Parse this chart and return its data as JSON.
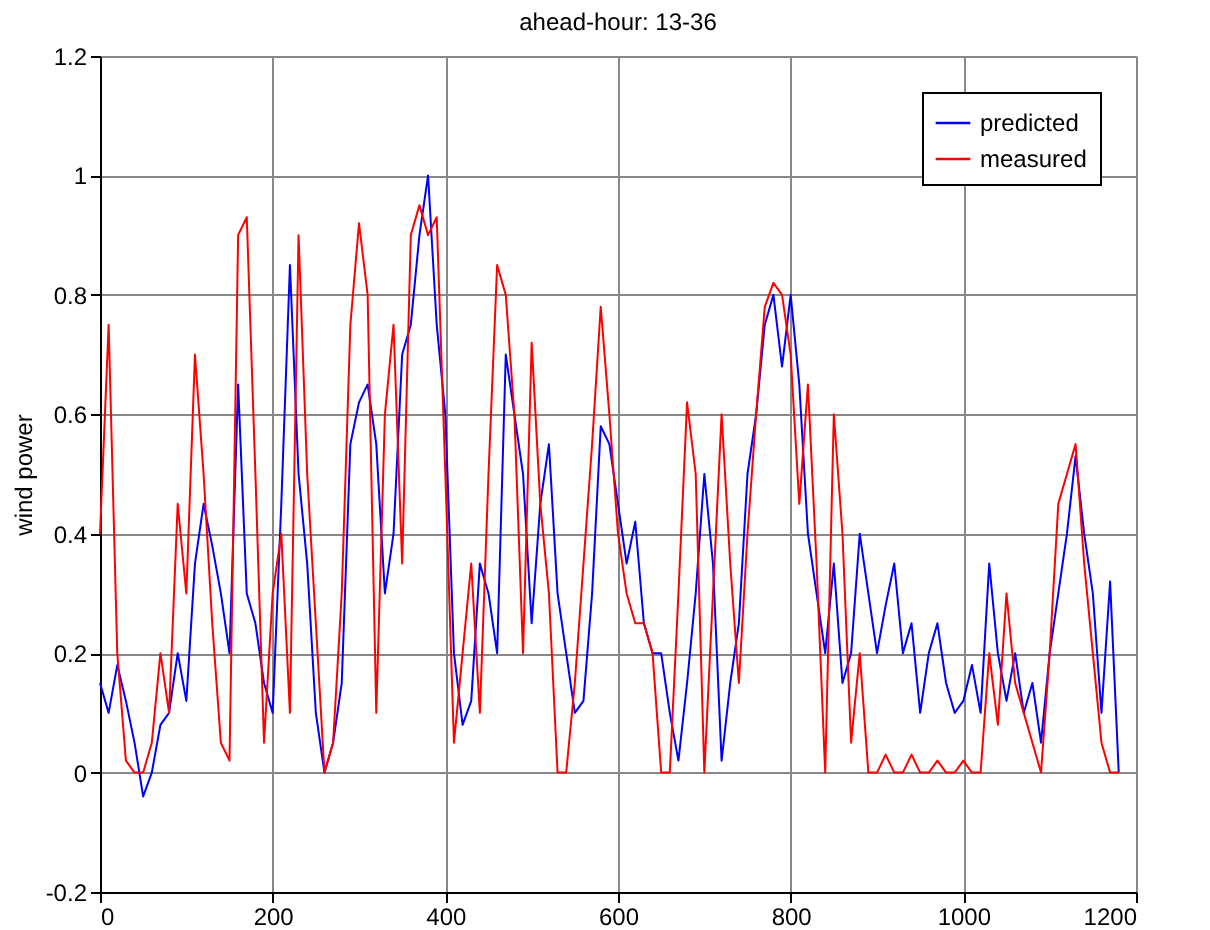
{
  "chart_data": {
    "type": "line",
    "title": "ahead-hour: 13-36",
    "ylabel": "wind power",
    "x": [
      0,
      10,
      20,
      30,
      40,
      50,
      60,
      70,
      80,
      90,
      100,
      110,
      120,
      130,
      140,
      150,
      160,
      170,
      180,
      190,
      200,
      210,
      220,
      230,
      240,
      250,
      260,
      270,
      280,
      290,
      300,
      310,
      320,
      330,
      340,
      350,
      360,
      370,
      380,
      390,
      400,
      410,
      420,
      430,
      440,
      450,
      460,
      470,
      480,
      490,
      500,
      510,
      520,
      530,
      540,
      550,
      560,
      570,
      580,
      590,
      600,
      610,
      620,
      630,
      640,
      650,
      660,
      670,
      680,
      690,
      700,
      710,
      720,
      730,
      740,
      750,
      760,
      770,
      780,
      790,
      800,
      810,
      820,
      830,
      840,
      850,
      860,
      870,
      880,
      890,
      900,
      910,
      920,
      930,
      940,
      950,
      960,
      970,
      980,
      990,
      1000,
      1010,
      1020,
      1030,
      1040,
      1050,
      1060,
      1070,
      1080,
      1090,
      1100,
      1110,
      1120,
      1130,
      1140,
      1150,
      1160,
      1170,
      1180
    ],
    "series": [
      {
        "name": "predicted",
        "color": "#0000ff",
        "values": [
          0.15,
          0.1,
          0.18,
          0.12,
          0.05,
          -0.04,
          0.0,
          0.08,
          0.1,
          0.2,
          0.12,
          0.35,
          0.45,
          0.38,
          0.3,
          0.2,
          0.65,
          0.3,
          0.25,
          0.15,
          0.1,
          0.45,
          0.85,
          0.5,
          0.35,
          0.1,
          0.0,
          0.05,
          0.15,
          0.55,
          0.62,
          0.65,
          0.55,
          0.3,
          0.4,
          0.7,
          0.75,
          0.9,
          1.0,
          0.75,
          0.6,
          0.2,
          0.08,
          0.12,
          0.35,
          0.3,
          0.2,
          0.7,
          0.6,
          0.5,
          0.25,
          0.45,
          0.55,
          0.3,
          0.2,
          0.1,
          0.12,
          0.3,
          0.58,
          0.55,
          0.45,
          0.35,
          0.42,
          0.25,
          0.2,
          0.2,
          0.1,
          0.02,
          0.15,
          0.3,
          0.5,
          0.35,
          0.02,
          0.15,
          0.25,
          0.5,
          0.6,
          0.75,
          0.8,
          0.68,
          0.8,
          0.65,
          0.4,
          0.3,
          0.2,
          0.35,
          0.15,
          0.2,
          0.4,
          0.3,
          0.2,
          0.28,
          0.35,
          0.2,
          0.25,
          0.1,
          0.2,
          0.25,
          0.15,
          0.1,
          0.12,
          0.18,
          0.1,
          0.35,
          0.2,
          0.12,
          0.2,
          0.1,
          0.15,
          0.05,
          0.2,
          0.3,
          0.4,
          0.53,
          0.4,
          0.3,
          0.1,
          0.32,
          0.0
        ]
      },
      {
        "name": "measured",
        "color": "#ff0000",
        "values": [
          0.4,
          0.75,
          0.2,
          0.02,
          0.0,
          0.0,
          0.05,
          0.2,
          0.1,
          0.45,
          0.3,
          0.7,
          0.5,
          0.25,
          0.05,
          0.02,
          0.9,
          0.93,
          0.5,
          0.05,
          0.3,
          0.4,
          0.1,
          0.9,
          0.5,
          0.25,
          0.0,
          0.05,
          0.3,
          0.75,
          0.92,
          0.8,
          0.1,
          0.6,
          0.75,
          0.35,
          0.9,
          0.95,
          0.9,
          0.93,
          0.5,
          0.05,
          0.2,
          0.35,
          0.1,
          0.5,
          0.85,
          0.8,
          0.6,
          0.2,
          0.72,
          0.45,
          0.3,
          0.0,
          0.0,
          0.15,
          0.35,
          0.55,
          0.78,
          0.6,
          0.4,
          0.3,
          0.25,
          0.25,
          0.2,
          0.0,
          0.0,
          0.3,
          0.62,
          0.5,
          0.0,
          0.3,
          0.6,
          0.35,
          0.15,
          0.4,
          0.6,
          0.78,
          0.82,
          0.8,
          0.7,
          0.45,
          0.65,
          0.35,
          0.0,
          0.6,
          0.4,
          0.05,
          0.2,
          0.0,
          0.0,
          0.03,
          0.0,
          0.0,
          0.03,
          0.0,
          0.0,
          0.02,
          0.0,
          0.0,
          0.02,
          0.0,
          0.0,
          0.2,
          0.08,
          0.3,
          0.15,
          0.1,
          0.05,
          0.0,
          0.2,
          0.45,
          0.5,
          0.55,
          0.35,
          0.2,
          0.05,
          0.0,
          0.0
        ]
      }
    ],
    "xlim": [
      0,
      1200
    ],
    "xticks": [
      0,
      200,
      400,
      600,
      800,
      1000,
      1200
    ],
    "ylim": [
      -0.2,
      1.2
    ],
    "yticks": [
      -0.2,
      0,
      0.2,
      0.4,
      0.6,
      0.8,
      1,
      1.2
    ],
    "grid": true,
    "legend": "top right"
  }
}
